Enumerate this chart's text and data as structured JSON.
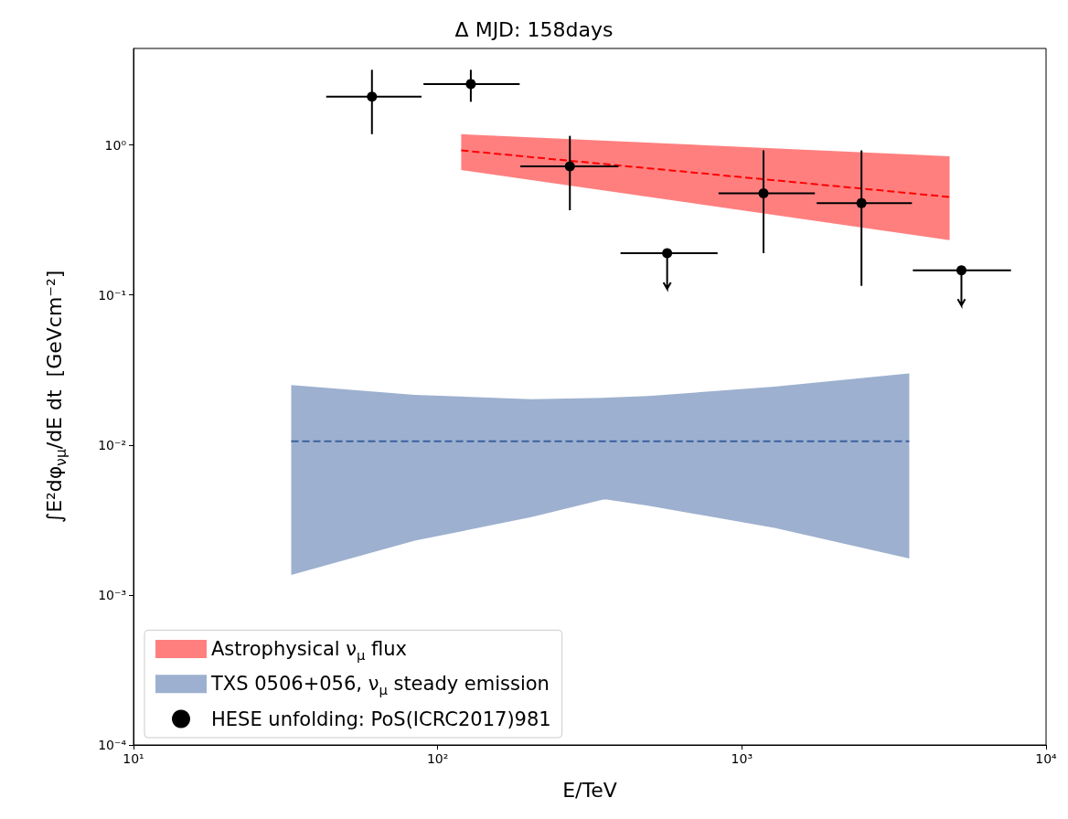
{
  "chart_data": {
    "type": "scatter",
    "title": "Δ MJD: 158days",
    "xlabel": "E/TeV",
    "ylabel": "∫E²dφ$_{νμ}$/dE dt  [GeVcm⁻²]",
    "log": "xy",
    "grid": false,
    "legend": "bottom left",
    "xlim": [
      10,
      10000
    ],
    "ylim": [
      0.0001,
      4.4
    ],
    "xticks": [
      {
        "value": 10,
        "label": "10¹"
      },
      {
        "value": 100,
        "label": "10²"
      },
      {
        "value": 1000,
        "label": "10³"
      },
      {
        "value": 10000,
        "label": "10⁴"
      }
    ],
    "yticks": [
      {
        "value": 0.0001,
        "label": "10⁻⁴"
      },
      {
        "value": 0.001,
        "label": "10⁻³"
      },
      {
        "value": 0.01,
        "label": "10⁻²"
      },
      {
        "value": 0.1,
        "label": "10⁻¹"
      },
      {
        "value": 1,
        "label": "10⁰"
      }
    ],
    "series": [
      {
        "type": "line",
        "name": "Astrophysical ν$_{μ}$ flux",
        "color": "#ff0000",
        "line_style": "dashed",
        "x": [
          119.5,
          4820
        ],
        "values": [
          0.92,
          0.45
        ],
        "lower": [
          0.68,
          0.232
        ],
        "upper": [
          1.18,
          0.84
        ]
      },
      {
        "type": "line",
        "name": "TXS 0506+056, ν$_{μ}$ steady emission",
        "color": "#3b61a0",
        "line_style": "dashed",
        "x": [
          33,
          84,
          203,
          350,
          360,
          492,
          1280,
          3550
        ],
        "values": [
          0.0106,
          0.0106,
          0.0106,
          0.0106,
          0.0106,
          0.0106,
          0.0106,
          0.0106
        ],
        "lower": [
          0.00136,
          0.0023,
          0.0033,
          0.00432,
          0.00432,
          0.00394,
          0.0028,
          0.00175
        ],
        "upper": [
          0.0251,
          0.0216,
          0.0202,
          0.0206,
          0.0207,
          0.0212,
          0.0245,
          0.03
        ]
      },
      {
        "name": "HESE unfolding: PoS(ICRC2017)981",
        "color": "#000000",
        "marker": "circle",
        "x": [
          60.8,
          128.5,
          272,
          568,
          1178,
          2473,
          5270
        ],
        "values": [
          2.1,
          2.55,
          0.72,
          0.19,
          0.476,
          0.41,
          0.146
        ],
        "errors": [
          [
            1.18,
            3.17
          ],
          [
            1.94,
            3.17
          ],
          [
            0.367,
            1.15
          ],
          [
            0.11,
            0.19
          ],
          [
            0.19,
            0.92
          ],
          [
            0.115,
            0.92
          ],
          [
            0.085,
            0.146
          ]
        ],
        "xerrors": [
          [
            43,
            88.5
          ],
          [
            89.8,
            186
          ],
          [
            187,
            393
          ],
          [
            399,
            832
          ],
          [
            838,
            1738
          ],
          [
            1762,
            3623
          ],
          [
            3648,
            7670
          ]
        ]
      }
    ]
  }
}
